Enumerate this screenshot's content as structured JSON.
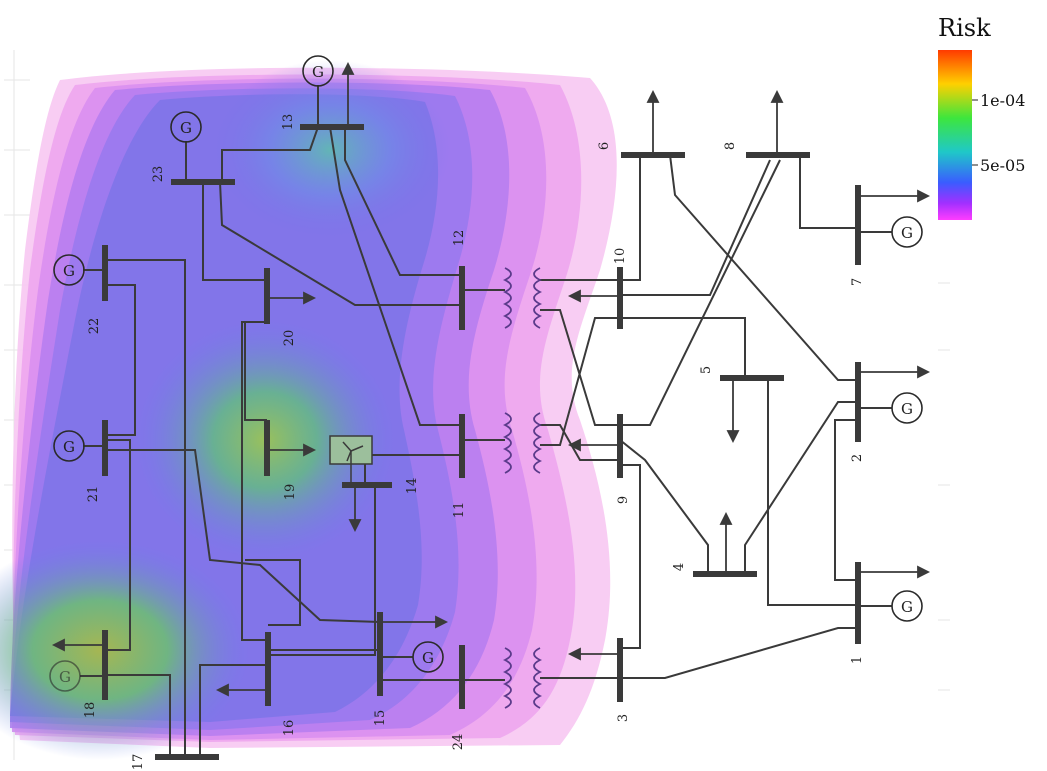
{
  "legend": {
    "title": "Risk",
    "ticks": [
      "1e-04",
      "5e-05"
    ],
    "colors": [
      "#ff3b00",
      "#ffd000",
      "#39e639",
      "#1fc8c8",
      "#3a6cff",
      "#8a2cff",
      "#ff38ff"
    ]
  },
  "heat_colors": {
    "outer": "#f6c3f0",
    "mid": "#b26cf0",
    "inner": "#7b63e8",
    "hotspot": "#5fc06a",
    "warm": "#9bc45a"
  },
  "buses": {
    "b1": "1",
    "b2": "2",
    "b3": "3",
    "b4": "4",
    "b5": "5",
    "b6": "6",
    "b7": "7",
    "b8": "8",
    "b9": "9",
    "b10": "10",
    "b11": "11",
    "b12": "12",
    "b13": "13",
    "b14": "14",
    "b15": "15",
    "b16": "16",
    "b17": "17",
    "b18": "18",
    "b19": "19",
    "b20": "20",
    "b21": "21",
    "b22": "22",
    "b23": "23",
    "b24": "24"
  },
  "generator_symbol": "G"
}
